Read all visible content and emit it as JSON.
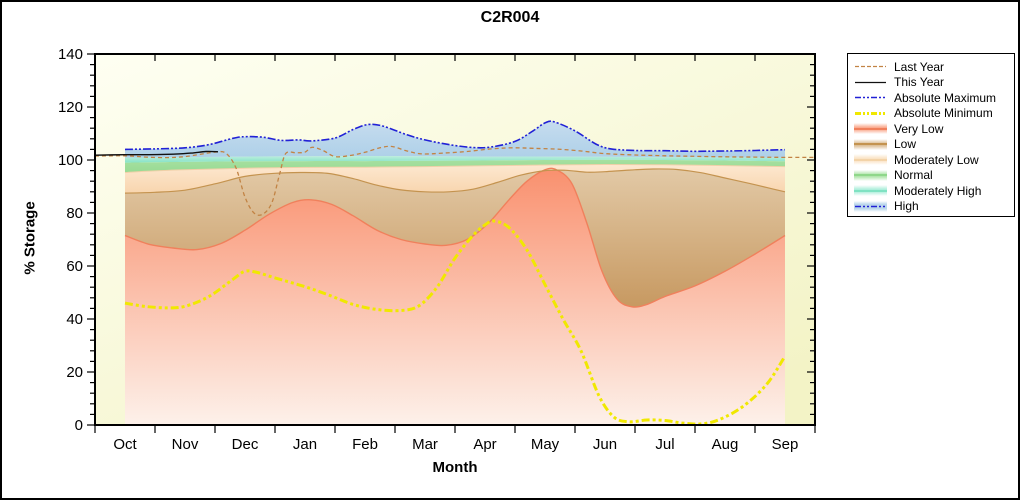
{
  "chart_data": {
    "type": "area",
    "title": "C2R004",
    "xlabel": "Month",
    "ylabel": "% Storage",
    "x_categories": [
      "Oct",
      "Nov",
      "Dec",
      "Jan",
      "Feb",
      "Mar",
      "Apr",
      "May",
      "Jun",
      "Jul",
      "Aug",
      "Sep"
    ],
    "y_ticks": [
      0,
      20,
      40,
      60,
      80,
      100,
      120,
      140
    ],
    "y_minor_step": 4,
    "ylim": [
      0,
      140
    ],
    "grid": false,
    "legend_position": "right",
    "plot_bg": [
      "#fefff2",
      "#f3f3c6"
    ],
    "lines": [
      {
        "id": "abs_max",
        "name": "Absolute Maximum",
        "color": "#2121d6",
        "width": 1.6,
        "dash": "8 2 2 2 2 2",
        "points": [
          [
            0,
            104
          ],
          [
            0.5,
            104.2
          ],
          [
            1,
            104.6
          ],
          [
            1.4,
            105.8
          ],
          [
            1.8,
            108.2
          ],
          [
            2,
            108.8
          ],
          [
            2.3,
            108.6
          ],
          [
            2.6,
            107.4
          ],
          [
            2.9,
            107.6
          ],
          [
            3.1,
            107.2
          ],
          [
            3.5,
            108.3
          ],
          [
            3.8,
            111.5
          ],
          [
            4.05,
            113.4
          ],
          [
            4.3,
            112.8
          ],
          [
            4.7,
            109.5
          ],
          [
            5,
            107.6
          ],
          [
            5.4,
            105.8
          ],
          [
            5.8,
            104.7
          ],
          [
            6.1,
            104.9
          ],
          [
            6.5,
            107
          ],
          [
            6.8,
            111
          ],
          [
            7,
            114
          ],
          [
            7.15,
            114.4
          ],
          [
            7.5,
            111
          ],
          [
            7.85,
            106
          ],
          [
            8.1,
            104.2
          ],
          [
            8.5,
            103.6
          ],
          [
            9,
            103.5
          ],
          [
            9.5,
            103.3
          ],
          [
            10,
            103.4
          ],
          [
            10.5,
            103.6
          ],
          [
            11,
            103.9
          ]
        ]
      },
      {
        "id": "abs_min",
        "name": "Absolute Minimum",
        "color": "#f0e800",
        "width": 3,
        "dash": "8 3 3 3 3 3",
        "points": [
          [
            0,
            46
          ],
          [
            0.35,
            44.7
          ],
          [
            0.7,
            44.2
          ],
          [
            1,
            44.8
          ],
          [
            1.4,
            48.5
          ],
          [
            1.8,
            55
          ],
          [
            2,
            58
          ],
          [
            2.2,
            57.6
          ],
          [
            2.5,
            55.5
          ],
          [
            3,
            52.2
          ],
          [
            3.4,
            49
          ],
          [
            3.8,
            45.5
          ],
          [
            4.2,
            43.6
          ],
          [
            4.6,
            43.2
          ],
          [
            4.9,
            45
          ],
          [
            5.2,
            52
          ],
          [
            5.5,
            63
          ],
          [
            5.8,
            71.5
          ],
          [
            6,
            75.5
          ],
          [
            6.15,
            77
          ],
          [
            6.4,
            74.5
          ],
          [
            6.7,
            66
          ],
          [
            7,
            53
          ],
          [
            7.3,
            40
          ],
          [
            7.6,
            28
          ],
          [
            7.9,
            11
          ],
          [
            8.15,
            3
          ],
          [
            8.4,
            1.2
          ],
          [
            8.7,
            1.9
          ],
          [
            9,
            1.7
          ],
          [
            9.3,
            0.7
          ],
          [
            9.6,
            0.4
          ],
          [
            9.9,
            2
          ],
          [
            10.3,
            7
          ],
          [
            10.7,
            15.5
          ],
          [
            11,
            26
          ]
        ]
      },
      {
        "id": "last_year",
        "name": "Last Year",
        "color": "#c28344",
        "width": 1.3,
        "dash": "4 3",
        "points": [
          [
            -0.5,
            101.5
          ],
          [
            0,
            101.6
          ],
          [
            0.35,
            101.1
          ],
          [
            0.7,
            100.9
          ],
          [
            1,
            101.3
          ],
          [
            1.3,
            102.3
          ],
          [
            1.5,
            103
          ],
          [
            1.68,
            102.6
          ],
          [
            1.85,
            97
          ],
          [
            2,
            86
          ],
          [
            2.15,
            80
          ],
          [
            2.3,
            79.6
          ],
          [
            2.45,
            84
          ],
          [
            2.58,
            95
          ],
          [
            2.68,
            102.5
          ],
          [
            2.85,
            102.7
          ],
          [
            3,
            103
          ],
          [
            3.12,
            104.8
          ],
          [
            3.3,
            103.6
          ],
          [
            3.5,
            101.3
          ],
          [
            3.75,
            101.7
          ],
          [
            4,
            102.9
          ],
          [
            4.25,
            104.6
          ],
          [
            4.45,
            105.1
          ],
          [
            4.7,
            103.4
          ],
          [
            4.95,
            102.3
          ],
          [
            5.3,
            102.6
          ],
          [
            5.7,
            103.2
          ],
          [
            6.1,
            104.2
          ],
          [
            6.45,
            104.6
          ],
          [
            6.8,
            104.4
          ],
          [
            7.2,
            104.1
          ],
          [
            7.6,
            103.4
          ],
          [
            8,
            102.4
          ],
          [
            8.5,
            101.9
          ],
          [
            9,
            101.6
          ],
          [
            9.5,
            101.4
          ],
          [
            10,
            101.2
          ],
          [
            10.5,
            101.1
          ],
          [
            11,
            101
          ],
          [
            11.5,
            101
          ]
        ]
      },
      {
        "id": "this_year",
        "name": "This Year",
        "color": "#111111",
        "width": 1.4,
        "dash": "",
        "points": [
          [
            -0.5,
            101.8
          ],
          [
            0,
            102
          ],
          [
            0.4,
            102
          ],
          [
            0.8,
            102.2
          ],
          [
            1.1,
            102.6
          ],
          [
            1.35,
            103.2
          ],
          [
            1.55,
            103.1
          ]
        ]
      }
    ],
    "boundaries": {
      "very_low_top": [
        [
          0,
          71.5
        ],
        [
          0.4,
          68.2
        ],
        [
          0.8,
          66.8
        ],
        [
          1.2,
          66.2
        ],
        [
          1.6,
          68.5
        ],
        [
          2,
          73.5
        ],
        [
          2.4,
          79.5
        ],
        [
          2.8,
          84
        ],
        [
          3.1,
          85
        ],
        [
          3.45,
          83.2
        ],
        [
          3.8,
          79
        ],
        [
          4.2,
          73.5
        ],
        [
          4.6,
          70
        ],
        [
          5,
          68.3
        ],
        [
          5.35,
          67.8
        ],
        [
          5.7,
          70
        ],
        [
          6.05,
          76
        ],
        [
          6.4,
          85
        ],
        [
          6.7,
          92
        ],
        [
          7,
          96.3
        ],
        [
          7.2,
          96.2
        ],
        [
          7.45,
          91
        ],
        [
          7.7,
          76
        ],
        [
          7.95,
          58
        ],
        [
          8.2,
          47.5
        ],
        [
          8.45,
          44.6
        ],
        [
          8.7,
          45.5
        ],
        [
          9,
          48.5
        ],
        [
          9.5,
          52.5
        ],
        [
          10,
          58
        ],
        [
          10.5,
          64.5
        ],
        [
          11,
          71.5
        ]
      ],
      "low_top": [
        [
          0,
          87.5
        ],
        [
          0.5,
          87.8
        ],
        [
          1,
          88.6
        ],
        [
          1.5,
          91
        ],
        [
          2,
          93.8
        ],
        [
          2.5,
          95
        ],
        [
          3,
          95.3
        ],
        [
          3.4,
          94.9
        ],
        [
          3.8,
          93
        ],
        [
          4.2,
          90.5
        ],
        [
          4.6,
          88.7
        ],
        [
          5,
          88
        ],
        [
          5.4,
          88
        ],
        [
          5.8,
          89
        ],
        [
          6.2,
          91.5
        ],
        [
          6.6,
          94.3
        ],
        [
          7,
          96
        ],
        [
          7.35,
          96.1
        ],
        [
          7.7,
          95.4
        ],
        [
          8,
          95.6
        ],
        [
          8.4,
          96.2
        ],
        [
          8.8,
          96.6
        ],
        [
          9.2,
          96.4
        ],
        [
          9.6,
          95.2
        ],
        [
          10,
          93.2
        ],
        [
          10.4,
          91.2
        ],
        [
          10.7,
          89.6
        ],
        [
          11,
          88
        ]
      ],
      "mod_low_top": [
        [
          0,
          95.3
        ],
        [
          0.5,
          95.9
        ],
        [
          1,
          96.3
        ],
        [
          1.5,
          96.6
        ],
        [
          2,
          96.9
        ],
        [
          2.5,
          97.1
        ],
        [
          3,
          97.2
        ],
        [
          4,
          97.3
        ],
        [
          5,
          97.5
        ],
        [
          6,
          97.8
        ],
        [
          7,
          98.1
        ],
        [
          8,
          98.3
        ],
        [
          9,
          98.2
        ],
        [
          10,
          97.9
        ],
        [
          11,
          97.5
        ]
      ],
      "normal_top": [
        [
          0,
          99
        ],
        [
          1,
          99.3
        ],
        [
          2,
          99.5
        ],
        [
          3,
          99.6
        ],
        [
          4,
          99.6
        ],
        [
          5,
          99.7
        ],
        [
          6,
          99.8
        ],
        [
          7,
          100
        ],
        [
          8,
          100.1
        ],
        [
          9,
          100
        ],
        [
          10,
          99.8
        ],
        [
          11,
          99.5
        ]
      ],
      "mod_high_top": [
        [
          0,
          100.9
        ],
        [
          1,
          101.1
        ],
        [
          2,
          101.3
        ],
        [
          3,
          101.4
        ],
        [
          4,
          101.5
        ],
        [
          5,
          101.4
        ],
        [
          6,
          101.3
        ],
        [
          7,
          101.3
        ],
        [
          8,
          101.2
        ],
        [
          9,
          101.1
        ],
        [
          10,
          101
        ],
        [
          11,
          100.8
        ]
      ]
    },
    "bands": [
      {
        "id": "very-low",
        "label": "Very Low",
        "lower": "zero",
        "upper": "very_low_top",
        "fill": [
          "#f9906e",
          "#fdf1ea"
        ],
        "edge": "#f0805c",
        "edge_width": 1.4
      },
      {
        "id": "low",
        "label": "Low",
        "lower": "very_low_top",
        "upper": "low_top",
        "fill": [
          "#e2c9a6",
          "#c79961"
        ],
        "edge": "#c4934f",
        "edge_width": 1.2
      },
      {
        "id": "moderately-low",
        "label": "Moderately Low",
        "lower": "low_top",
        "upper": "mod_low_top",
        "fill": [
          "#fde8d0",
          "#f8d5ae"
        ],
        "edge": "#f0d0a8",
        "edge_width": 1
      },
      {
        "id": "normal",
        "label": "Normal",
        "lower": "mod_low_top",
        "upper": "normal_top",
        "fill": [
          "#a6e0a0",
          "#98da93"
        ],
        "edge": null,
        "edge_width": 0
      },
      {
        "id": "moderately-high",
        "label": "Moderately High",
        "lower": "normal_top",
        "upper": "mod_high_top",
        "fill": [
          "#bceede",
          "#85e3c5"
        ],
        "edge": null,
        "edge_width": 0
      },
      {
        "id": "high",
        "label": "High",
        "lower": "mod_high_top",
        "upper": "line:abs_max",
        "fill": [
          "#c6dcef",
          "#aed0e8"
        ],
        "edge": null,
        "edge_width": 0
      }
    ],
    "monthly_summary": {
      "last_year": [
        101.5,
        101.2,
        79.5,
        104.8,
        103,
        102.5,
        104.5,
        104.3,
        102.3,
        101.7,
        101.3,
        101
      ],
      "this_year": [
        102,
        102.5,
        null,
        null,
        null,
        null,
        null,
        null,
        null,
        null,
        null,
        null
      ],
      "absolute_maximum": [
        104,
        104.5,
        109,
        107,
        113.5,
        107.5,
        105,
        114.5,
        104.2,
        103.5,
        103.4,
        104
      ],
      "absolute_minimum": [
        46,
        44.5,
        58,
        52,
        44,
        50,
        76,
        53,
        3,
        1.5,
        3,
        26
      ],
      "very_low_upper": [
        71.5,
        66.5,
        73.5,
        84.5,
        76,
        68.3,
        79,
        96.3,
        47,
        48.5,
        58,
        71.5
      ],
      "low_upper": [
        87.5,
        88.5,
        94,
        95.3,
        91.5,
        88,
        92,
        96,
        95.6,
        96.5,
        93,
        88
      ],
      "moderately_low_upper": [
        95.3,
        96.3,
        97,
        97.2,
        97.3,
        97.5,
        97.8,
        98.1,
        98.3,
        98.2,
        97.9,
        97.5
      ],
      "normal_upper": [
        99,
        99.3,
        99.5,
        99.6,
        99.6,
        99.7,
        99.8,
        100,
        100.1,
        100,
        99.8,
        99.5
      ],
      "moderately_high_upper": [
        100.9,
        101.1,
        101.3,
        101.4,
        101.5,
        101.4,
        101.3,
        101.3,
        101.2,
        101.1,
        101,
        100.8
      ]
    }
  },
  "legend": {
    "items": [
      {
        "id": "last-year",
        "label": "Last Year",
        "type": "line",
        "color": "#c28344",
        "dash": "4 2",
        "width": 1.3
      },
      {
        "id": "this-year",
        "label": "This Year",
        "type": "line",
        "color": "#111111",
        "dash": "",
        "width": 1.3
      },
      {
        "id": "absolute-maximum",
        "label": "Absolute Maximum",
        "type": "line",
        "color": "#2121d6",
        "dash": "6 2 2 2 2 2",
        "width": 1.5
      },
      {
        "id": "absolute-minimum",
        "label": "Absolute Minimum",
        "type": "line",
        "color": "#f0e800",
        "dash": "6 2 2 2 2 2",
        "width": 3
      },
      {
        "id": "very-low",
        "label": "Very Low",
        "type": "band",
        "line_color": "#f0805c",
        "fill": "#f9a283"
      },
      {
        "id": "low",
        "label": "Low",
        "type": "band",
        "line_color": "#c4934f",
        "fill": "#d9b88c"
      },
      {
        "id": "moderately-low",
        "label": "Moderately Low",
        "type": "band",
        "line_color": "#f3d3a8",
        "fill": "#fae0bf"
      },
      {
        "id": "normal",
        "label": "Normal",
        "type": "band",
        "line_color": "#8fd78a",
        "fill": "#a9e3a3"
      },
      {
        "id": "moderately-high",
        "label": "Moderately High",
        "type": "band",
        "line_color": "#7fe2c2",
        "fill": "#a5ecd7"
      },
      {
        "id": "high",
        "label": "High",
        "type": "band_line",
        "color": "#2121d6",
        "dash": "6 2 2 2 2 2",
        "width": 1.5,
        "fill": "#b8d5ea"
      }
    ]
  }
}
